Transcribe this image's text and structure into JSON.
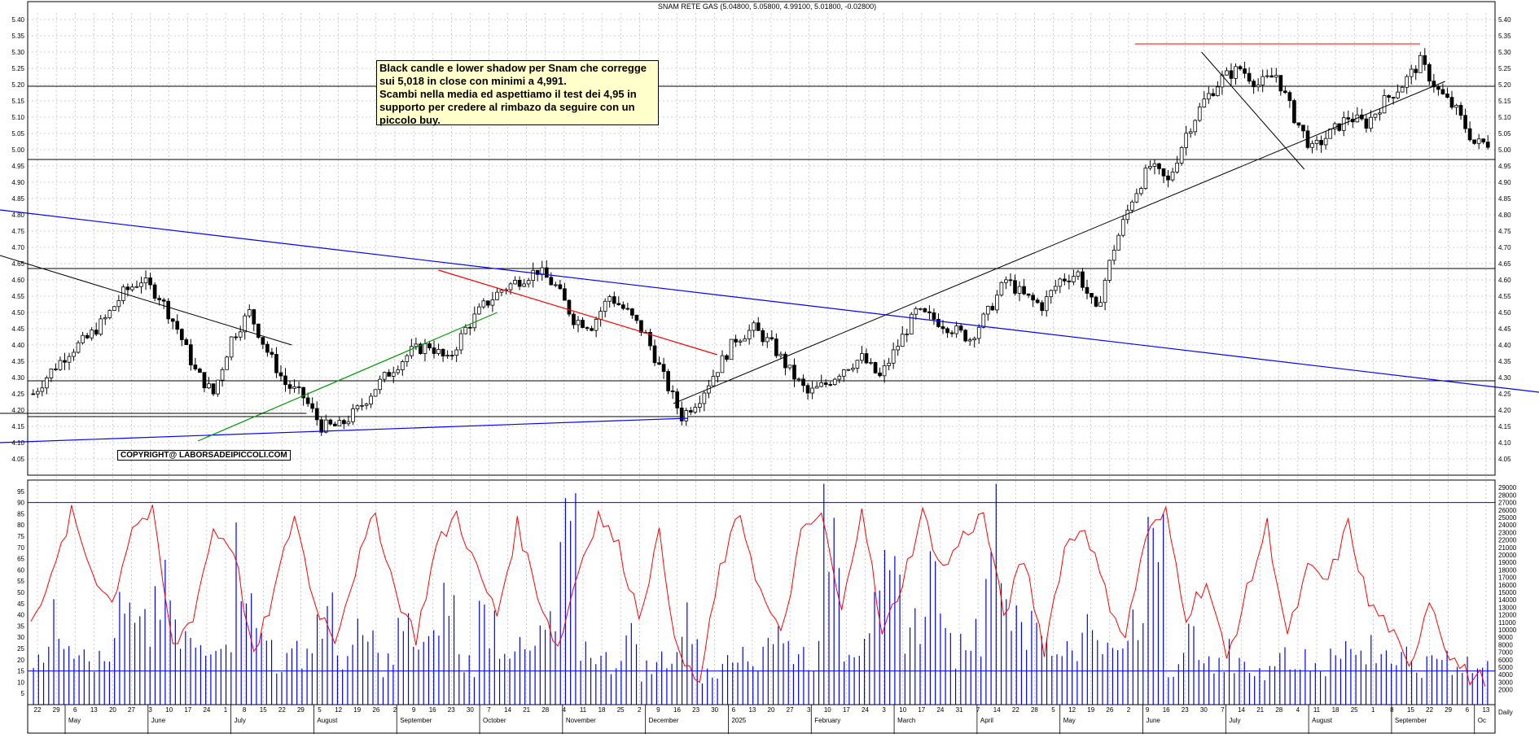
{
  "chart_title": "SNAM RETE GAS (5.04800, 5.05800, 4.99100, 5.01800, -0.02800)",
  "annotation_lines": [
    "Black candle e lower shadow per Snam che corregge",
    "sui 5,018 in close con minimi a 4,991.",
    "Scambi nella media ed aspettiamo il test dei 4,95 in",
    "supporto per credere al rimbazo da seguire con un",
    "piccolo buy."
  ],
  "copyright": "COPYRIGHT@ LABORSADEIPICCOLI.COM",
  "x_axis_label": "Daily",
  "colors": {
    "candle": "#000000",
    "trend_red": "#ff0000",
    "trend_blue": "#0000ff",
    "trend_green": "#009900",
    "osc_line": "#ff0000",
    "volume": "#0000ff",
    "grid": "#9a9a9a"
  },
  "chart_data": [
    {
      "type": "candlestick",
      "title": "SNAM RETE GAS (5.04800, 5.05800, 4.99100, 5.01800, -0.02800)",
      "last_bar": {
        "open": 5.048,
        "high": 5.058,
        "low": 4.991,
        "close": 5.018,
        "change": -0.028
      },
      "y_ticks": [
        "4.05",
        "4.10",
        "4.15",
        "4.20",
        "4.25",
        "4.30",
        "4.35",
        "4.40",
        "4.45",
        "4.50",
        "4.55",
        "4.60",
        "4.65",
        "4.70",
        "4.75",
        "4.80",
        "4.85",
        "4.90",
        "4.95",
        "5.00",
        "5.05",
        "5.10",
        "5.15",
        "5.20",
        "5.25",
        "5.30",
        "5.35",
        "5.40"
      ],
      "ylim": [
        4.0,
        5.42
      ],
      "horizontal_levels": [
        4.18,
        4.29,
        4.635,
        4.97,
        5.195
      ],
      "resistance_top": 5.325,
      "approximate_closes": [
        4.25,
        4.32,
        4.38,
        4.42,
        4.48,
        4.56,
        4.6,
        4.55,
        4.45,
        4.32,
        4.25,
        4.42,
        4.5,
        4.38,
        4.28,
        4.24,
        4.15,
        4.15,
        4.2,
        4.27,
        4.33,
        4.38,
        4.4,
        4.35,
        4.45,
        4.52,
        4.57,
        4.6,
        4.63,
        4.58,
        4.48,
        4.46,
        4.55,
        4.5,
        4.43,
        4.3,
        4.18,
        4.24,
        4.33,
        4.42,
        4.45,
        4.4,
        4.32,
        4.25,
        4.28,
        4.33,
        4.36,
        4.3,
        4.4,
        4.5,
        4.48,
        4.45,
        4.42,
        4.5,
        4.6,
        4.55,
        4.52,
        4.6,
        4.62,
        4.5,
        4.7,
        4.85,
        4.95,
        4.9,
        5.05,
        5.15,
        5.22,
        5.25,
        5.2,
        5.23,
        5.1,
        5.0,
        5.05,
        5.1,
        5.08,
        5.15,
        5.2,
        5.27,
        5.18,
        5.12,
        5.02
      ]
    },
    {
      "type": "line",
      "series": [
        {
          "name": "",
          "values": [
            40,
            55,
            85,
            60,
            45,
            80,
            85,
            25,
            40,
            78,
            70,
            20,
            50,
            85,
            45,
            30,
            60,
            85,
            50,
            30,
            70,
            85,
            60,
            40,
            80,
            50,
            25,
            60,
            85,
            70,
            40,
            75,
            20,
            10,
            60,
            85,
            50,
            30,
            75,
            85,
            40,
            90,
            30,
            55,
            85,
            60,
            75,
            85,
            40,
            65,
            25,
            70,
            80,
            50,
            30,
            75,
            85,
            40,
            55,
            20,
            50,
            80,
            30,
            60,
            55,
            80,
            45,
            35,
            15,
            48,
            22,
            12
          ]
        }
      ],
      "ylim": [
        0,
        100
      ],
      "y_ticks": [
        "5",
        "10",
        "15",
        "20",
        "25",
        "30",
        "35",
        "40",
        "45",
        "50",
        "55",
        "60",
        "65",
        "70",
        "75",
        "80",
        "85",
        "90",
        "95"
      ],
      "levels": [
        90,
        15
      ]
    },
    {
      "type": "bar",
      "title": "",
      "series": [
        {
          "name": "",
          "values": [
            8000,
            11000,
            9000,
            6000,
            12000,
            10000,
            15000,
            9000,
            7000,
            11000,
            20000,
            9000,
            6000,
            8000,
            12000,
            7000,
            9000,
            6000,
            10000,
            8000,
            14000,
            6000,
            12000,
            9000,
            7000,
            10000,
            22000,
            8000,
            6000,
            9000,
            5000,
            7000,
            11000,
            4000,
            9000,
            6000,
            10000,
            8000,
            7000,
            25000,
            9000,
            12000,
            16000,
            11000,
            18000,
            8000,
            10000,
            27000,
            14000,
            10000,
            8000,
            9000,
            11000,
            7000,
            10000,
            28000,
            6000,
            9000,
            5000,
            7000,
            4000,
            8000,
            6000,
            5000,
            9000,
            7000,
            8000,
            6000,
            5000,
            7000,
            6000,
            5000
          ]
        }
      ],
      "ylim": [
        0,
        30000
      ],
      "y_ticks": [
        "2000",
        "3000",
        "4000",
        "5000",
        "6000",
        "7000",
        "8000",
        "9000",
        "10000",
        "11000",
        "12000",
        "13000",
        "14000",
        "15000",
        "16000",
        "17000",
        "18000",
        "19000",
        "20000",
        "21000",
        "22000",
        "23000",
        "24000",
        "25000",
        "26000",
        "27000",
        "28000",
        "29000"
      ]
    }
  ],
  "x_axis": {
    "day_labels": [
      "22",
      "29",
      "6",
      "13",
      "20",
      "27",
      "3",
      "10",
      "17",
      "24",
      "1",
      "8",
      "15",
      "22",
      "29",
      "5",
      "12",
      "19",
      "26",
      "2",
      "9",
      "16",
      "23",
      "30",
      "7",
      "14",
      "21",
      "28",
      "4",
      "11",
      "18",
      "25",
      "2",
      "9",
      "16",
      "23",
      "30",
      "6",
      "13",
      "20",
      "27",
      "3",
      "10",
      "17",
      "24",
      "3",
      "10",
      "17",
      "24",
      "31",
      "7",
      "14",
      "22",
      "28",
      "5",
      "12",
      "19",
      "26",
      "2",
      "9",
      "16",
      "23",
      "30",
      "7",
      "14",
      "21",
      "28",
      "4",
      "11",
      "18",
      "25",
      "1",
      "8",
      "15",
      "22",
      "29",
      "6",
      "13"
    ],
    "month_labels": [
      "May",
      "June",
      "July",
      "August",
      "September",
      "October",
      "November",
      "December",
      "2025",
      "February",
      "March",
      "April",
      "May",
      "June",
      "July",
      "August",
      "September",
      "Oc"
    ]
  }
}
